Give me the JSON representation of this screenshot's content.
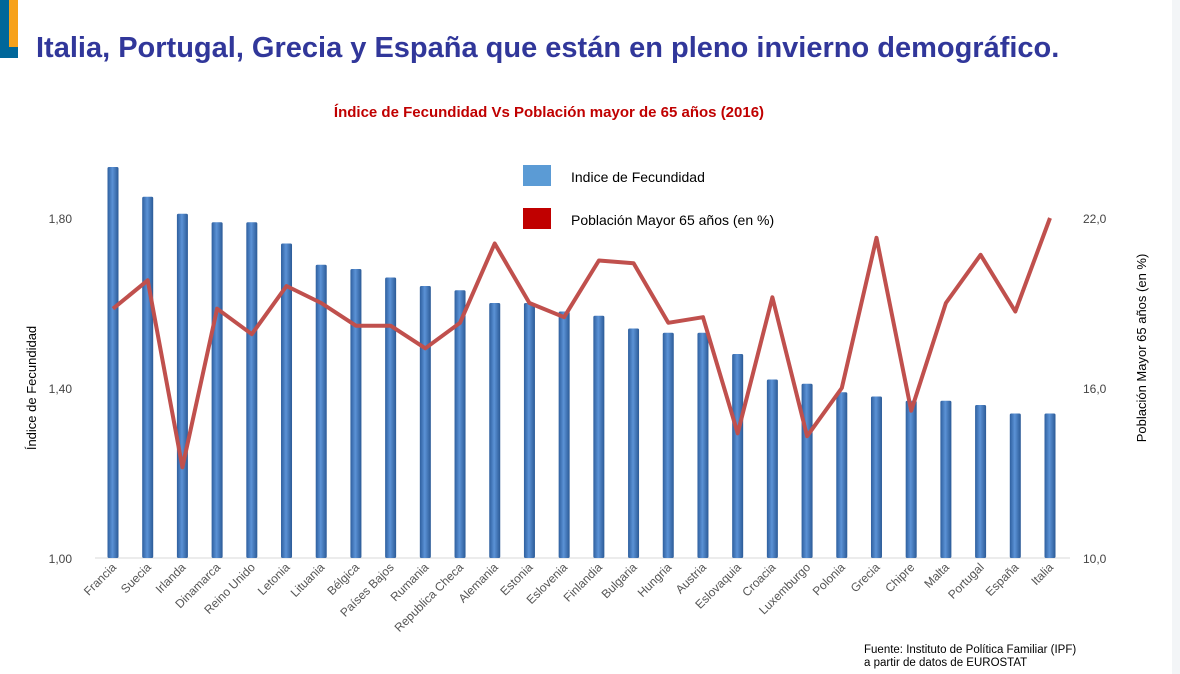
{
  "slide": {
    "title": "Italia, Portugal, Grecia y España que están en pleno invierno demográfico.",
    "source_line1": "Fuente: Instituto de Política Familiar (IPF)",
    "source_line2": "a partir de datos de EUROSTAT"
  },
  "chart_data": {
    "type": "bar+line",
    "title": "Índice de Fecundidad Vs Población mayor de 65 años (2016)",
    "ylabel": "Índice de Fecundidad",
    "y2label": "Población Mayor 65 años (en %)",
    "ylim": [
      1.0,
      2.0
    ],
    "y2lim": [
      10.0,
      25.0
    ],
    "yticks": [
      "1,00",
      "1,40",
      "1,80"
    ],
    "yticks_values": [
      1.0,
      1.4,
      1.8
    ],
    "y2ticks": [
      "10,0",
      "16,0",
      "22,0"
    ],
    "y2ticks_values": [
      10,
      16,
      22
    ],
    "legend_position": "top-center",
    "categories": [
      "Francia",
      "Suecia",
      "Irlanda",
      "Dinamarca",
      "Reino Unido",
      "Letonia",
      "Lituania",
      "Bélgica",
      "Países Bajos",
      "Rumania",
      "Republica Checa",
      "Alemania",
      "Estonia",
      "Eslovenia",
      "Finlandia",
      "Bulgaria",
      "Hungria",
      "Austria",
      "Eslovaquia",
      "Croacia",
      "Luxemburgo",
      "Polonia",
      "Grecia",
      "Chipre",
      "Malta",
      "Portugal",
      "España",
      "Italia"
    ],
    "series": [
      {
        "name": "Indice de Fecundidad",
        "type": "bar",
        "axis": "left",
        "color": "#4a7fc0",
        "values": [
          1.92,
          1.85,
          1.81,
          1.79,
          1.79,
          1.74,
          1.69,
          1.68,
          1.66,
          1.64,
          1.63,
          1.6,
          1.6,
          1.58,
          1.57,
          1.54,
          1.53,
          1.53,
          1.48,
          1.42,
          1.41,
          1.39,
          1.38,
          1.37,
          1.37,
          1.36,
          1.34,
          1.34
        ]
      },
      {
        "name": "Población Mayor 65 años (en %)",
        "type": "line",
        "axis": "right",
        "color": "#c0504d",
        "values": [
          18.8,
          19.8,
          13.2,
          18.8,
          17.9,
          19.6,
          19.0,
          18.2,
          18.2,
          17.4,
          18.3,
          21.1,
          19.0,
          18.5,
          20.5,
          20.4,
          18.3,
          18.5,
          14.4,
          19.2,
          14.3,
          16.0,
          21.3,
          15.2,
          19.0,
          20.7,
          18.7,
          22.0
        ]
      }
    ]
  }
}
